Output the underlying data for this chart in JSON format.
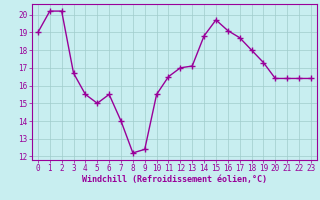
{
  "x": [
    0,
    1,
    2,
    3,
    4,
    5,
    6,
    7,
    8,
    9,
    10,
    11,
    12,
    13,
    14,
    15,
    16,
    17,
    18,
    19,
    20,
    21,
    22,
    23
  ],
  "y": [
    19.0,
    20.2,
    20.2,
    16.7,
    15.5,
    15.0,
    15.5,
    14.0,
    12.2,
    12.4,
    15.5,
    16.5,
    17.0,
    17.1,
    18.8,
    19.7,
    19.1,
    18.7,
    18.0,
    17.3,
    16.4,
    16.4,
    16.4,
    16.4
  ],
  "line_color": "#990099",
  "marker": "+",
  "markersize": 4,
  "markeredgewidth": 1.0,
  "linewidth": 1.0,
  "bg_color": "#c8eef0",
  "grid_color": "#a0cccc",
  "xlabel": "Windchill (Refroidissement éolien,°C)",
  "xlabel_color": "#990099",
  "tick_color": "#990099",
  "ylim": [
    11.8,
    20.6
  ],
  "yticks": [
    12,
    13,
    14,
    15,
    16,
    17,
    18,
    19,
    20
  ],
  "xticks": [
    0,
    1,
    2,
    3,
    4,
    5,
    6,
    7,
    8,
    9,
    10,
    11,
    12,
    13,
    14,
    15,
    16,
    17,
    18,
    19,
    20,
    21,
    22,
    23
  ],
  "spine_color": "#990099",
  "tick_fontsize": 5.5,
  "xlabel_fontsize": 6.0,
  "xlabel_fontweight": "bold"
}
